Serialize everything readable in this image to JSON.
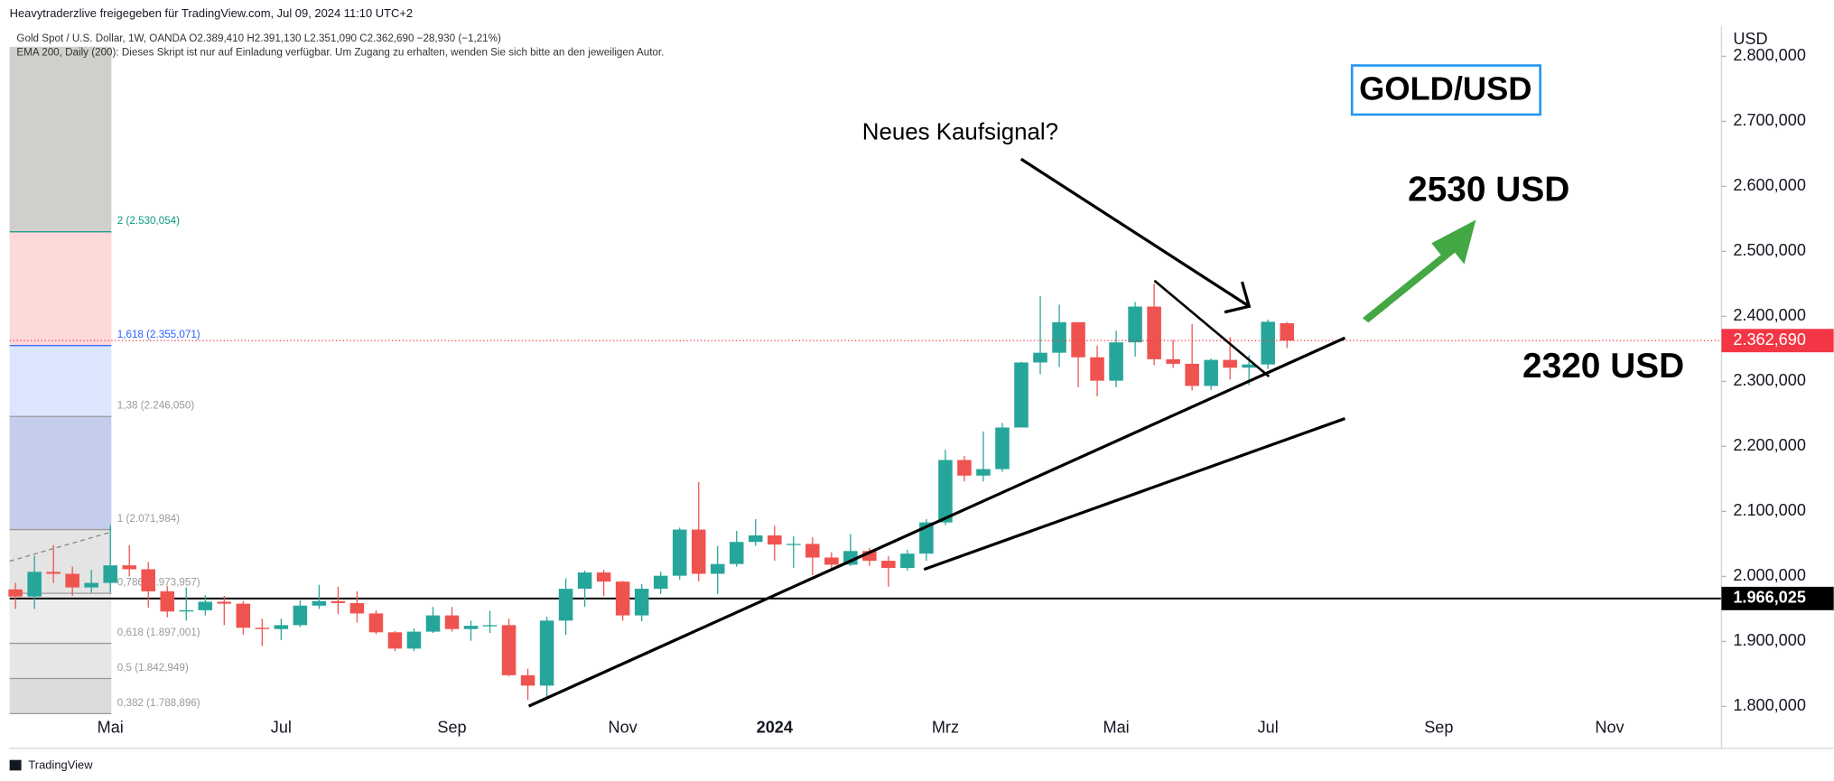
{
  "chart_data": {
    "type": "candlestick",
    "title": "Heavytraderzlive freigegeben für TradingView.com, Jul 09, 2024 11:10 UTC+2",
    "subtitle": "Gold Spot / U.S. Dollar, 1W, OANDA O2.389,410 H2.391,130 L2.351,090 C2.362,690 −28,930 (−1,21%)",
    "note": "EMA 200, Daily (200): Dieses Skript ist nur auf Einladung verfügbar. Um Zugang zu erhalten, wenden Sie sich bitte an den jeweiligen Autor.",
    "badge": "GOLD/USD",
    "annotations": [
      "Neues Kaufsignal?",
      "2530 USD",
      "2320 USD"
    ],
    "y_axis_label": "USD",
    "brand": "TradingView",
    "up_color": "#26a69a",
    "down_color": "#ef5350",
    "grid": false,
    "ylim": [
      1786,
      2847
    ],
    "yticks": [
      {
        "value": 1800,
        "label": "1.800,000"
      },
      {
        "value": 1900,
        "label": "1.900,000"
      },
      {
        "value": 2000,
        "label": "2.000,000"
      },
      {
        "value": 2100,
        "label": "2.100,000"
      },
      {
        "value": 2200,
        "label": "2.200,000"
      },
      {
        "value": 2300,
        "label": "2.300,000"
      },
      {
        "value": 2400,
        "label": "2.400,000"
      },
      {
        "value": 2500,
        "label": "2.500,000"
      },
      {
        "value": 2600,
        "label": "2.600,000"
      },
      {
        "value": 2700,
        "label": "2.700,000"
      },
      {
        "value": 2800,
        "label": "2.800,000"
      }
    ],
    "last_price": {
      "value": 2362.69,
      "label": "2.362,690",
      "color": "#f23645"
    },
    "horizontal_line": {
      "value": 1966.025,
      "label": "1.966,025",
      "color": "#000000"
    },
    "fib_levels": [
      {
        "label": "2 (2.530,054)",
        "value": 2530.054,
        "color": "#089981",
        "zone": "#fdd9d9"
      },
      {
        "label": "1,618 (2.355,071)",
        "value": 2355.071,
        "color": "#2962ff",
        "zone": "#dbe5fd"
      },
      {
        "label": "1,38 (2.246,050)",
        "value": 2246.05,
        "color": "#9a9a9a",
        "zone": "#c5cdee"
      },
      {
        "label": "1 (2.071,984)",
        "value": 2071.984,
        "color": "#9a9a9a",
        "zone": "#e4e4e4"
      },
      {
        "label": "0,786 (1.973,957)",
        "value": 1973.957,
        "color": "#9a9a9a",
        "zone": "#ececec"
      },
      {
        "label": "0,618 (1.897,001)",
        "value": 1897.001,
        "color": "#9a9a9a",
        "zone": "#e6e6e6"
      },
      {
        "label": "0,5 (1.842,949)",
        "value": 1842.949,
        "color": "#9a9a9a",
        "zone": "#dcdcde"
      },
      {
        "label": "0,382 (1.788,896)",
        "value": 1788.896,
        "color": "#9a9a9a",
        "zone": null
      }
    ],
    "categories": [
      null,
      null,
      null,
      null,
      null,
      "Mai",
      null,
      null,
      null,
      null,
      null,
      null,
      null,
      null,
      "Jul",
      null,
      null,
      null,
      null,
      null,
      null,
      null,
      null,
      "Sep",
      null,
      null,
      null,
      null,
      null,
      null,
      null,
      null,
      "Nov",
      null,
      null,
      null,
      null,
      null,
      null,
      null,
      "2024",
      null,
      null,
      null,
      null,
      null,
      null,
      null,
      null,
      "Mrz",
      null,
      null,
      null,
      null,
      null,
      null,
      null,
      null,
      "Mai",
      null,
      null,
      null,
      null,
      null,
      null,
      null,
      "Jul",
      null,
      null,
      null,
      null,
      null,
      null,
      null,
      null,
      "Sep",
      null,
      null,
      null,
      null,
      null,
      null,
      null,
      null,
      "Nov",
      null,
      null,
      null,
      null,
      null
    ],
    "open": [
      1980,
      1969,
      2007,
      2004,
      1983,
      1990,
      2017,
      2011,
      1977,
      1946,
      1948,
      1961,
      1958,
      1921,
      1919,
      1925,
      1955,
      1962,
      1959,
      1943,
      1914,
      1889,
      1915,
      1940,
      1919,
      1924,
      1925,
      1848,
      1832,
      1932,
      1981,
      2006,
      1992,
      1940,
      1981,
      2001,
      2072,
      2004,
      2019,
      2053,
      2063,
      2049,
      2050,
      2029,
      2018,
      2039,
      2024,
      2013,
      2035,
      2083,
      2179,
      2155,
      2165,
      2229,
      2329,
      2344,
      2391,
      2337,
      2301,
      2360,
      2415,
      2334,
      2327,
      2293,
      2333,
      2321,
      2326,
      2389.41,
      null,
      null,
      null,
      null,
      null,
      null,
      null,
      null,
      null,
      null,
      null,
      null,
      null,
      null,
      null,
      null,
      null,
      null,
      null,
      null,
      null,
      null
    ],
    "high": [
      1990,
      2032,
      2048,
      2015,
      2010,
      2079,
      2048,
      2022,
      1985,
      1983,
      1971,
      1970,
      1962,
      1935,
      1935,
      1963,
      1987,
      1984,
      1977,
      1948,
      1916,
      1920,
      1953,
      1953,
      1932,
      1947,
      1935,
      1858,
      1938,
      1997,
      2009,
      2010,
      1993,
      1988,
      2007,
      2075,
      2145,
      2047,
      2070,
      2088,
      2078,
      2062,
      2060,
      2037,
      2065,
      2044,
      2031,
      2041,
      2088,
      2195,
      2185,
      2223,
      2236,
      2330,
      2431,
      2418,
      2391,
      2355,
      2378,
      2422,
      2450,
      2364,
      2388,
      2335,
      2368,
      2340,
      2395,
      2391.13,
      null,
      null,
      null,
      null,
      null,
      null,
      null,
      null,
      null,
      null,
      null,
      null,
      null,
      null,
      null,
      null,
      null,
      null,
      null,
      null,
      null,
      null
    ],
    "low": [
      1950,
      1950,
      1990,
      1970,
      1975,
      1975,
      2000,
      1952,
      1937,
      1932,
      1940,
      1925,
      1910,
      1893,
      1902,
      1922,
      1950,
      1942,
      1929,
      1911,
      1885,
      1885,
      1913,
      1915,
      1901,
      1913,
      1846,
      1810,
      1810,
      1910,
      1953,
      1970,
      1932,
      1931,
      1973,
      1995,
      1992,
      1973,
      2015,
      2047,
      2024,
      2013,
      2002,
      2010,
      2016,
      2016,
      1984,
      2009,
      2024,
      2079,
      2146,
      2146,
      2161,
      2229,
      2311,
      2322,
      2291,
      2277,
      2291,
      2338,
      2325,
      2321,
      2286,
      2287,
      2303,
      2294,
      2319,
      2351.09,
      null,
      null,
      null,
      null,
      null,
      null,
      null,
      null,
      null,
      null,
      null,
      null,
      null,
      null,
      null,
      null,
      null,
      null,
      null,
      null,
      null,
      null
    ],
    "close": [
      1969,
      2007,
      2004,
      1983,
      1990,
      2017,
      2011,
      1977,
      1946,
      1948,
      1961,
      1958,
      1921,
      1919,
      1925,
      1955,
      1962,
      1959,
      1943,
      1914,
      1889,
      1915,
      1940,
      1919,
      1924,
      1925,
      1848,
      1832,
      1932,
      1981,
      2006,
      1992,
      1940,
      1981,
      2001,
      2072,
      2004,
      2019,
      2053,
      2063,
      2049,
      2050,
      2029,
      2018,
      2039,
      2024,
      2013,
      2035,
      2083,
      2179,
      2155,
      2165,
      2229,
      2329,
      2344,
      2391,
      2337,
      2301,
      2360,
      2415,
      2334,
      2327,
      2293,
      2333,
      2321,
      2326,
      2391.62,
      2362.69,
      null,
      null,
      null,
      null,
      null,
      null,
      null,
      null,
      null,
      null,
      null,
      null,
      null,
      null,
      null,
      null,
      null,
      null,
      null,
      null,
      null,
      null
    ]
  }
}
